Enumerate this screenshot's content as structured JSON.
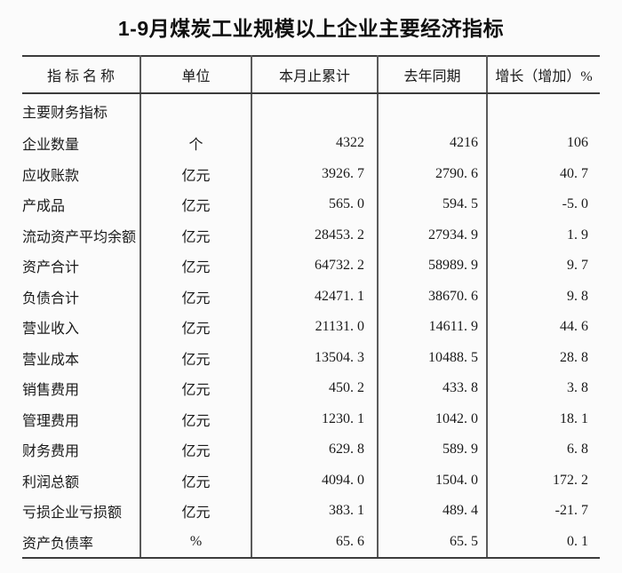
{
  "title": "1-9月煤炭工业规模以上企业主要经济指标",
  "colors": {
    "background": "#fbfbfb",
    "text": "#1a1a1a",
    "line_heavy": "#3c3c3c",
    "line_light": "#5a5a5a"
  },
  "table": {
    "headers": [
      "指 标 名 称",
      "单位",
      "本月止累计",
      "去年同期",
      "增长（增加）%"
    ],
    "section_header": "主要财务指标",
    "rows": [
      {
        "name": "企业数量",
        "unit": "个",
        "cumulative": "4322",
        "last_year": "4216",
        "growth": "106"
      },
      {
        "name": "应收账款",
        "unit": "亿元",
        "cumulative": "3926. 7",
        "last_year": "2790. 6",
        "growth": "40. 7"
      },
      {
        "name": "产成品",
        "unit": "亿元",
        "cumulative": "565. 0",
        "last_year": "594. 5",
        "growth": "-5. 0"
      },
      {
        "name": "流动资产平均余额",
        "unit": "亿元",
        "cumulative": "28453. 2",
        "last_year": "27934. 9",
        "growth": "1. 9"
      },
      {
        "name": "资产合计",
        "unit": "亿元",
        "cumulative": "64732. 2",
        "last_year": "58989. 9",
        "growth": "9. 7"
      },
      {
        "name": "负债合计",
        "unit": "亿元",
        "cumulative": "42471. 1",
        "last_year": "38670. 6",
        "growth": "9. 8"
      },
      {
        "name": "营业收入",
        "unit": "亿元",
        "cumulative": "21131. 0",
        "last_year": "14611. 9",
        "growth": "44. 6"
      },
      {
        "name": "营业成本",
        "unit": "亿元",
        "cumulative": "13504. 3",
        "last_year": "10488. 5",
        "growth": "28. 8"
      },
      {
        "name": "销售费用",
        "unit": "亿元",
        "cumulative": "450. 2",
        "last_year": "433. 8",
        "growth": "3. 8"
      },
      {
        "name": "管理费用",
        "unit": "亿元",
        "cumulative": "1230. 1",
        "last_year": "1042. 0",
        "growth": "18. 1"
      },
      {
        "name": "财务费用",
        "unit": "亿元",
        "cumulative": "629. 8",
        "last_year": "589. 9",
        "growth": "6. 8"
      },
      {
        "name": "利润总额",
        "unit": "亿元",
        "cumulative": "4094. 0",
        "last_year": "1504. 0",
        "growth": "172. 2"
      },
      {
        "name": "亏损企业亏损额",
        "unit": "亿元",
        "cumulative": "383. 1",
        "last_year": "489. 4",
        "growth": "-21. 7"
      },
      {
        "name": "资产负债率",
        "unit": "%",
        "cumulative": "65. 6",
        "last_year": "65. 5",
        "growth": "0. 1"
      }
    ]
  }
}
